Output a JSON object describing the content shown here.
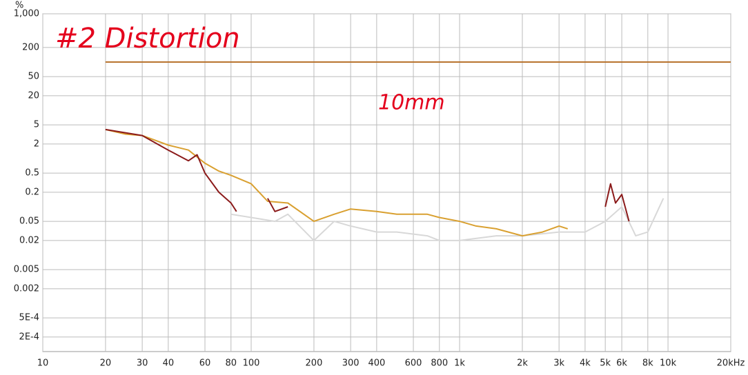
{
  "chart_data": {
    "type": "line",
    "y_label": "%",
    "annotations": [
      "#2 Distortion",
      "10mm"
    ],
    "xscale": "log",
    "yscale": "log",
    "grid": true,
    "xlim": [
      10,
      20000
    ],
    "ylim": [
      0.0001,
      1000
    ],
    "xticks": [
      10,
      20,
      30,
      40,
      60,
      80,
      {
        "value": 100,
        "label": "100"
      },
      200,
      300,
      400,
      600,
      800,
      {
        "value": 1000,
        "label": "1k"
      },
      {
        "value": 2000,
        "label": "2k"
      },
      {
        "value": 3000,
        "label": "3k"
      },
      {
        "value": 4000,
        "label": "4k"
      },
      {
        "value": 5000,
        "label": "5k"
      },
      {
        "value": 6000,
        "label": "6k"
      },
      {
        "value": 8000,
        "label": "8k"
      },
      {
        "value": 10000,
        "label": "10k"
      },
      {
        "value": 20000,
        "label": "20kHz"
      }
    ],
    "yticks": [
      {
        "value": 1000,
        "label": "1,000"
      },
      200,
      50,
      20,
      5,
      2,
      0.5,
      0.2,
      0.05,
      0.02,
      0.005,
      0.002,
      {
        "value": 0.0005,
        "label": "5E-4"
      },
      {
        "value": 0.0002,
        "label": "2E-4"
      }
    ],
    "series": [
      {
        "color": "#b8732e",
        "x": [
          20,
          20000
        ],
        "values": [
          100,
          100
        ]
      },
      {
        "color": "#d8d8d8",
        "x": [
          80,
          100,
          130,
          150,
          200,
          250,
          300,
          400,
          500,
          700,
          800,
          1000,
          1500,
          2000,
          3000,
          4000,
          5000,
          6000,
          7000,
          8000,
          9500
        ],
        "values": [
          0.07,
          0.06,
          0.05,
          0.07,
          0.02,
          0.05,
          0.04,
          0.03,
          0.03,
          0.025,
          0.02,
          0.02,
          0.025,
          0.025,
          0.03,
          0.03,
          0.05,
          0.1,
          0.025,
          0.03,
          0.15
        ]
      },
      {
        "color": "#d9a030",
        "x": [
          20,
          25,
          30,
          40,
          50,
          60,
          70,
          80,
          100,
          120,
          150,
          200,
          250,
          300,
          400,
          500,
          700,
          800,
          1000,
          1200,
          1500,
          2000,
          2500,
          3000,
          3300
        ],
        "values": [
          4,
          3.2,
          3,
          1.9,
          1.5,
          0.8,
          0.55,
          0.45,
          0.3,
          0.13,
          0.12,
          0.05,
          0.07,
          0.09,
          0.08,
          0.07,
          0.07,
          0.06,
          0.05,
          0.04,
          0.035,
          0.025,
          0.03,
          0.04,
          0.035
        ]
      },
      {
        "color": "#8b1a1a",
        "x": [
          20,
          30,
          40,
          50,
          55,
          60,
          70,
          80,
          85,
          100,
          120,
          130,
          150,
          160,
          5000,
          5300,
          5600,
          6000,
          6500
        ],
        "values": [
          4,
          3,
          1.5,
          0.9,
          1.2,
          0.5,
          0.2,
          0.12,
          0.08,
          null,
          0.15,
          0.08,
          0.1,
          null,
          0.1,
          0.3,
          0.12,
          0.18,
          0.05
        ]
      }
    ]
  }
}
